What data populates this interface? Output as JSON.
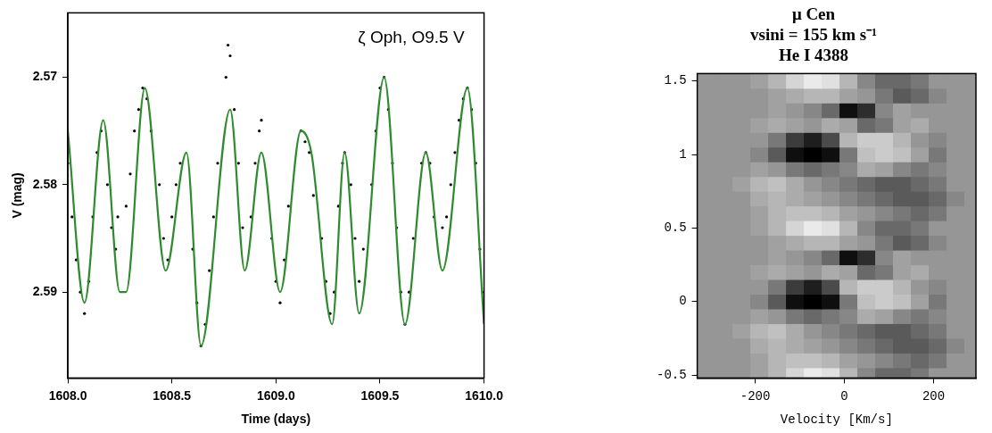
{
  "chart_data": [
    {
      "type": "line",
      "annotation": "ζ Oph, O9.5 V",
      "x_label": "Time (days)",
      "y_label": "V (mag)",
      "xlim": [
        1608.0,
        1610.0
      ],
      "xticks": [
        {
          "value": 1608.0,
          "label": "1608.0"
        },
        {
          "value": 1608.5,
          "label": "1608.5"
        },
        {
          "value": 1609.0,
          "label": "1609.0"
        },
        {
          "value": 1609.5,
          "label": "1609.5"
        },
        {
          "value": 1610.0,
          "label": "1610.0"
        }
      ],
      "ylim": [
        2.598,
        2.564
      ],
      "yticks": [
        2.57,
        2.58,
        2.59
      ],
      "grid": false,
      "series": [
        {
          "type": "scatter",
          "color": "#000000",
          "marker": "dot",
          "x": [
            1608.0,
            1608.02,
            1608.04,
            1608.06,
            1608.08,
            1608.1,
            1608.12,
            1608.14,
            1608.16,
            1608.19,
            1608.21,
            1608.23,
            1608.24,
            1608.28,
            1608.3,
            1608.32,
            1608.34,
            1608.36,
            1608.38,
            1608.4,
            1608.44,
            1608.46,
            1608.48,
            1608.5,
            1608.52,
            1608.54,
            1608.6,
            1608.62,
            1608.64,
            1608.66,
            1608.68,
            1608.7,
            1608.72,
            1608.76,
            1608.77,
            1608.78,
            1608.8,
            1608.82,
            1608.84,
            1608.88,
            1608.9,
            1608.92,
            1608.93,
            1608.98,
            1609.0,
            1609.02,
            1609.04,
            1609.06,
            1609.12,
            1609.14,
            1609.16,
            1609.18,
            1609.22,
            1609.24,
            1609.26,
            1609.28,
            1609.3,
            1609.32,
            1609.33,
            1609.36,
            1609.38,
            1609.4,
            1609.42,
            1609.46,
            1609.48,
            1609.5,
            1609.52,
            1609.54,
            1609.56,
            1609.58,
            1609.6,
            1609.62,
            1609.64,
            1609.66,
            1609.7,
            1609.72,
            1609.74,
            1609.76,
            1609.8,
            1609.82,
            1609.84,
            1609.86,
            1609.88,
            1609.9,
            1609.92,
            1609.94,
            1609.96,
            1609.98,
            1610.0
          ],
          "values": [
            2.578,
            2.583,
            2.587,
            2.59,
            2.592,
            2.589,
            2.583,
            2.577,
            2.575,
            2.58,
            2.584,
            2.586,
            2.583,
            2.582,
            2.579,
            2.575,
            2.573,
            2.571,
            2.572,
            2.575,
            2.58,
            2.585,
            2.587,
            2.583,
            2.58,
            2.578,
            2.586,
            2.591,
            2.595,
            2.593,
            2.588,
            2.583,
            2.578,
            2.57,
            2.567,
            2.568,
            2.573,
            2.578,
            2.584,
            2.583,
            2.578,
            2.575,
            2.574,
            2.585,
            2.589,
            2.591,
            2.587,
            2.582,
            2.575,
            2.576,
            2.577,
            2.581,
            2.585,
            2.589,
            2.592,
            2.59,
            2.582,
            2.578,
            2.577,
            2.58,
            2.585,
            2.589,
            2.586,
            2.58,
            2.575,
            2.571,
            2.57,
            2.573,
            2.578,
            2.584,
            2.59,
            2.593,
            2.59,
            2.585,
            2.578,
            2.577,
            2.578,
            2.583,
            2.584,
            2.583,
            2.58,
            2.577,
            2.574,
            2.572,
            2.571,
            2.573,
            2.578,
            2.586,
            2.59
          ]
        },
        {
          "type": "line",
          "color": "#2e8b2e",
          "marker": "none",
          "line_style": "solid",
          "x": [
            1608.0,
            1608.08,
            1608.17,
            1608.25,
            1608.28,
            1608.37,
            1608.47,
            1608.57,
            1608.64,
            1608.78,
            1608.85,
            1608.93,
            1609.02,
            1609.12,
            1609.17,
            1609.27,
            1609.33,
            1609.4,
            1609.52,
            1609.62,
            1609.72,
            1609.8,
            1609.92,
            1610.0
          ],
          "values": [
            2.575,
            2.591,
            2.574,
            2.59,
            2.59,
            2.571,
            2.588,
            2.577,
            2.595,
            2.573,
            2.588,
            2.577,
            2.59,
            2.575,
            2.577,
            2.593,
            2.577,
            2.592,
            2.57,
            2.593,
            2.577,
            2.588,
            2.571,
            2.593
          ]
        }
      ]
    },
    {
      "type": "heatmap",
      "title": [
        "μ Cen",
        "vsini = 155 km s⁻¹",
        "He I 4388"
      ],
      "x_label": "Velocity [Km/s]",
      "xlim": [
        -330,
        295
      ],
      "xticks": [
        -200,
        0,
        200
      ],
      "ylim": [
        -0.52,
        1.55
      ],
      "yticks": [
        -0.5,
        0,
        0.5,
        1,
        1.5
      ],
      "grid": false,
      "color": "gray",
      "zlim": [
        -1,
        1
      ],
      "x": [
        -310,
        -270,
        -230,
        -190,
        -150,
        -110,
        -70,
        -30,
        10,
        50,
        90,
        130,
        170,
        210,
        250,
        290
      ],
      "y": [
        -0.5,
        -0.4,
        -0.3,
        -0.2,
        -0.1,
        0,
        0.1,
        0.2,
        0.3,
        0.4,
        0.5,
        0.6,
        0.7,
        0.8,
        0.9,
        1.0,
        1.1,
        1.2,
        1.3,
        1.4,
        1.5
      ],
      "cells": [
        [
          0,
          0,
          0,
          0.1,
          0.3,
          0.6,
          0.8,
          0.7,
          0.3,
          -0.1,
          -0.3,
          -0.3,
          -0.2,
          0,
          0,
          0
        ],
        [
          0,
          0,
          0,
          0.1,
          0.3,
          0.4,
          0.4,
          0.3,
          0.1,
          0,
          -0.1,
          -0.2,
          -0.3,
          -0.2,
          0,
          0
        ],
        [
          0,
          0,
          0,
          0.2,
          0.3,
          0.2,
          0.1,
          0,
          -0.1,
          -0.2,
          -0.3,
          -0.4,
          -0.4,
          -0.3,
          -0.1,
          0
        ],
        [
          0,
          0,
          0.1,
          0.3,
          0.4,
          0.2,
          0,
          -0.1,
          -0.2,
          -0.3,
          -0.4,
          -0.4,
          -0.3,
          -0.2,
          0,
          0
        ],
        [
          0,
          0,
          0,
          0.1,
          0,
          -0.2,
          -0.3,
          -0.2,
          -0.1,
          0.2,
          0.1,
          -0.1,
          -0.2,
          -0.1,
          0,
          0
        ],
        [
          0,
          0,
          0,
          -0.1,
          -0.4,
          -0.9,
          -1,
          -0.9,
          -0.2,
          0.4,
          0.5,
          0.4,
          0.1,
          -0.2,
          0,
          0
        ],
        [
          0,
          0,
          0,
          0,
          -0.2,
          -0.6,
          -0.8,
          -0.5,
          0.3,
          0.5,
          0.5,
          0.3,
          0,
          -0.1,
          0,
          0
        ],
        [
          0,
          0,
          0,
          0.1,
          0.2,
          0.1,
          0,
          0.2,
          0.1,
          -0.3,
          -0.2,
          0.1,
          0.2,
          0,
          0,
          0
        ],
        [
          0,
          0,
          0,
          0,
          0.1,
          0,
          -0.1,
          -0.3,
          -0.9,
          -0.7,
          -0.1,
          0.1,
          0,
          0,
          0,
          0
        ],
        [
          0,
          0,
          0,
          0,
          0.1,
          0.2,
          0.3,
          0.3,
          0.1,
          0,
          -0.2,
          -0.4,
          -0.3,
          -0.1,
          0,
          0
        ],
        [
          0,
          0,
          0,
          0.1,
          0.3,
          0.6,
          0.8,
          0.7,
          0.3,
          -0.1,
          -0.3,
          -0.3,
          -0.2,
          0,
          0,
          0
        ],
        [
          0,
          0,
          0,
          0.1,
          0.3,
          0.4,
          0.4,
          0.3,
          0.1,
          0,
          -0.1,
          -0.2,
          -0.3,
          -0.2,
          0,
          0
        ],
        [
          0,
          0,
          0,
          0.2,
          0.3,
          0.2,
          0.1,
          0,
          -0.1,
          -0.2,
          -0.3,
          -0.4,
          -0.4,
          -0.3,
          -0.1,
          0
        ],
        [
          0,
          0,
          0.1,
          0.3,
          0.4,
          0.2,
          0,
          -0.1,
          -0.2,
          -0.3,
          -0.4,
          -0.4,
          -0.3,
          -0.2,
          0,
          0
        ],
        [
          0,
          0,
          0,
          0.1,
          0,
          -0.2,
          -0.3,
          -0.2,
          -0.1,
          0.2,
          0.1,
          -0.1,
          -0.2,
          -0.1,
          0,
          0
        ],
        [
          0,
          0,
          0,
          -0.1,
          -0.4,
          -0.9,
          -1,
          -0.9,
          -0.2,
          0.4,
          0.5,
          0.4,
          0.1,
          -0.2,
          0,
          0
        ],
        [
          0,
          0,
          0,
          0,
          -0.2,
          -0.6,
          -0.8,
          -0.5,
          0.3,
          0.5,
          0.5,
          0.3,
          0,
          -0.1,
          0,
          0
        ],
        [
          0,
          0,
          0,
          0.1,
          0.2,
          0.1,
          0,
          0.2,
          0.1,
          -0.3,
          -0.2,
          0.1,
          0.2,
          0,
          0,
          0
        ],
        [
          0,
          0,
          0,
          0,
          0.1,
          0,
          -0.1,
          -0.3,
          -0.9,
          -0.7,
          -0.1,
          0.1,
          0,
          0,
          0,
          0
        ],
        [
          0,
          0,
          0,
          0,
          0.1,
          0.2,
          0.3,
          0.3,
          0.1,
          0,
          -0.2,
          -0.4,
          -0.3,
          -0.1,
          0,
          0
        ],
        [
          0,
          0,
          0,
          0.1,
          0.3,
          0.6,
          0.8,
          0.7,
          0.3,
          -0.1,
          -0.3,
          -0.3,
          -0.2,
          0,
          0,
          0
        ]
      ]
    }
  ]
}
